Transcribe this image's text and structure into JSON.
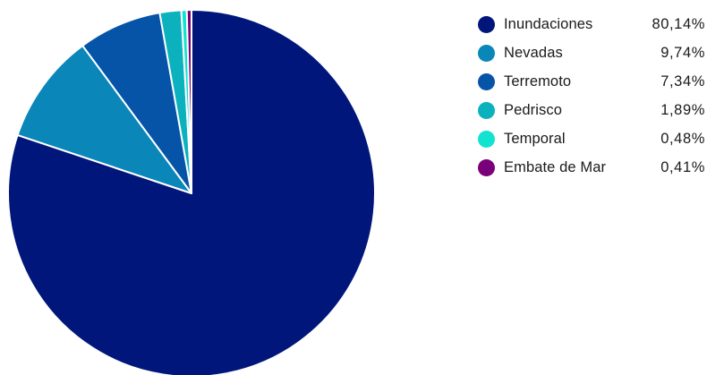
{
  "chart_data": {
    "type": "pie",
    "title": "",
    "legend_position": "top-right",
    "slices": [
      {
        "name": "Inundaciones",
        "value": 80.14,
        "label": "80,14%",
        "color": "#00167a"
      },
      {
        "name": "Nevadas",
        "value": 9.74,
        "label": "9,74%",
        "color": "#0a86b8"
      },
      {
        "name": "Terremoto",
        "value": 7.34,
        "label": "7,34%",
        "color": "#0654a8"
      },
      {
        "name": "Pedrisco",
        "value": 1.89,
        "label": "1,89%",
        "color": "#0bb1bd"
      },
      {
        "name": "Temporal",
        "value": 0.48,
        "label": "0,48%",
        "color": "#12e3d1"
      },
      {
        "name": "Embate de Mar",
        "value": 0.41,
        "label": "0,41%",
        "color": "#7a007a"
      }
    ]
  }
}
